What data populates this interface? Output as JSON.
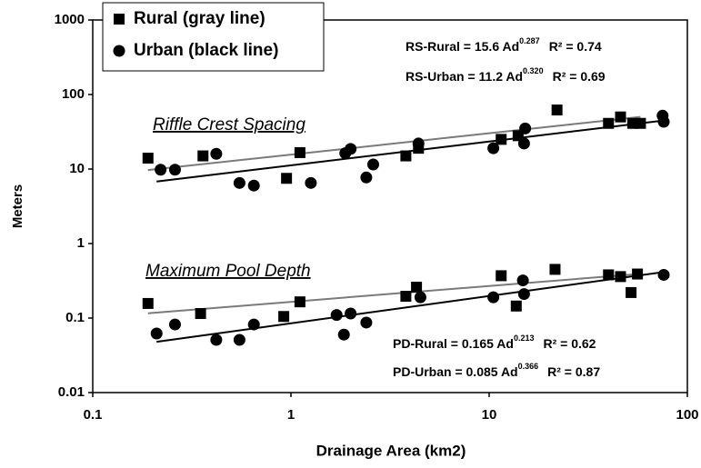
{
  "chart_data": {
    "type": "scatter",
    "xlabel": "Drainage Area (km2)",
    "ylabel": "Meters",
    "xlog": true,
    "ylog": true,
    "xlim": [
      0.1,
      100
    ],
    "ylim": [
      0.01,
      1000
    ],
    "xticks": [
      0.1,
      1,
      10,
      100
    ],
    "yticks": [
      0.01,
      0.1,
      1,
      10,
      100,
      1000
    ],
    "grid": false,
    "legend": "upper left",
    "annotations": [
      "Riffle Crest Spacing",
      "Maximum Pool Depth"
    ],
    "series": [
      {
        "name": "Rural (gray line)",
        "marker": "square",
        "color": "#000000",
        "line_color": "#7a7a7a",
        "x": [
          0.19,
          0.36,
          0.95,
          1.11,
          3.8,
          4.4,
          11.5,
          14,
          22,
          40,
          46,
          53,
          58,
          0.19,
          0.35,
          0.92,
          1.11,
          3.8,
          4.3,
          11.5,
          13.7,
          21.5,
          40,
          46,
          52,
          56
        ],
        "values": [
          14,
          15,
          7.5,
          16.6,
          15,
          19,
          25,
          28,
          62,
          41,
          50,
          41,
          41,
          0.157,
          0.115,
          0.105,
          0.165,
          0.196,
          0.26,
          0.37,
          0.145,
          0.45,
          0.38,
          0.36,
          0.22,
          0.39
        ]
      },
      {
        "name": "Urban (black line)",
        "marker": "circle",
        "color": "#000000",
        "line_color": "#000000",
        "x": [
          0.22,
          0.26,
          0.42,
          0.55,
          0.65,
          1.26,
          1.88,
          2.0,
          2.4,
          2.6,
          4.4,
          10.5,
          15,
          15.2,
          75,
          76,
          0.21,
          0.26,
          0.42,
          0.55,
          0.65,
          1.7,
          1.85,
          2.0,
          2.4,
          4.5,
          10.5,
          15,
          14.8,
          76
        ],
        "values": [
          9.8,
          9.8,
          16,
          6.5,
          6,
          6.5,
          16.3,
          18.6,
          7.7,
          11.5,
          22,
          19,
          22,
          35,
          52,
          43,
          0.062,
          0.082,
          0.051,
          0.051,
          0.082,
          0.11,
          0.06,
          0.115,
          0.087,
          0.19,
          0.19,
          0.21,
          0.32,
          0.38
        ]
      }
    ],
    "equations": [
      {
        "lhs": "RS-Rural =",
        "coef": 15.6,
        "var": "Ad",
        "exponent": 0.287,
        "r2_label": "R² =",
        "r2": 0.74,
        "series": 0
      },
      {
        "lhs": "RS-Urban =",
        "coef": 11.2,
        "var": "Ad",
        "exponent": {
          "value": 0.32,
          "label": "0.320"
        },
        "r2_label": "R² =",
        "r2": 0.69,
        "series": 1
      },
      {
        "lhs": "PD-Rural =",
        "coef": 0.165,
        "var": "Ad",
        "exponent": 0.213,
        "r2_label": "R² =",
        "r2": 0.62,
        "series": 0
      },
      {
        "lhs": "PD-Urban =",
        "coef": 0.085,
        "var": "Ad",
        "exponent": 0.366,
        "r2_label": "R² =",
        "r2": 0.87,
        "series": 1
      }
    ]
  }
}
